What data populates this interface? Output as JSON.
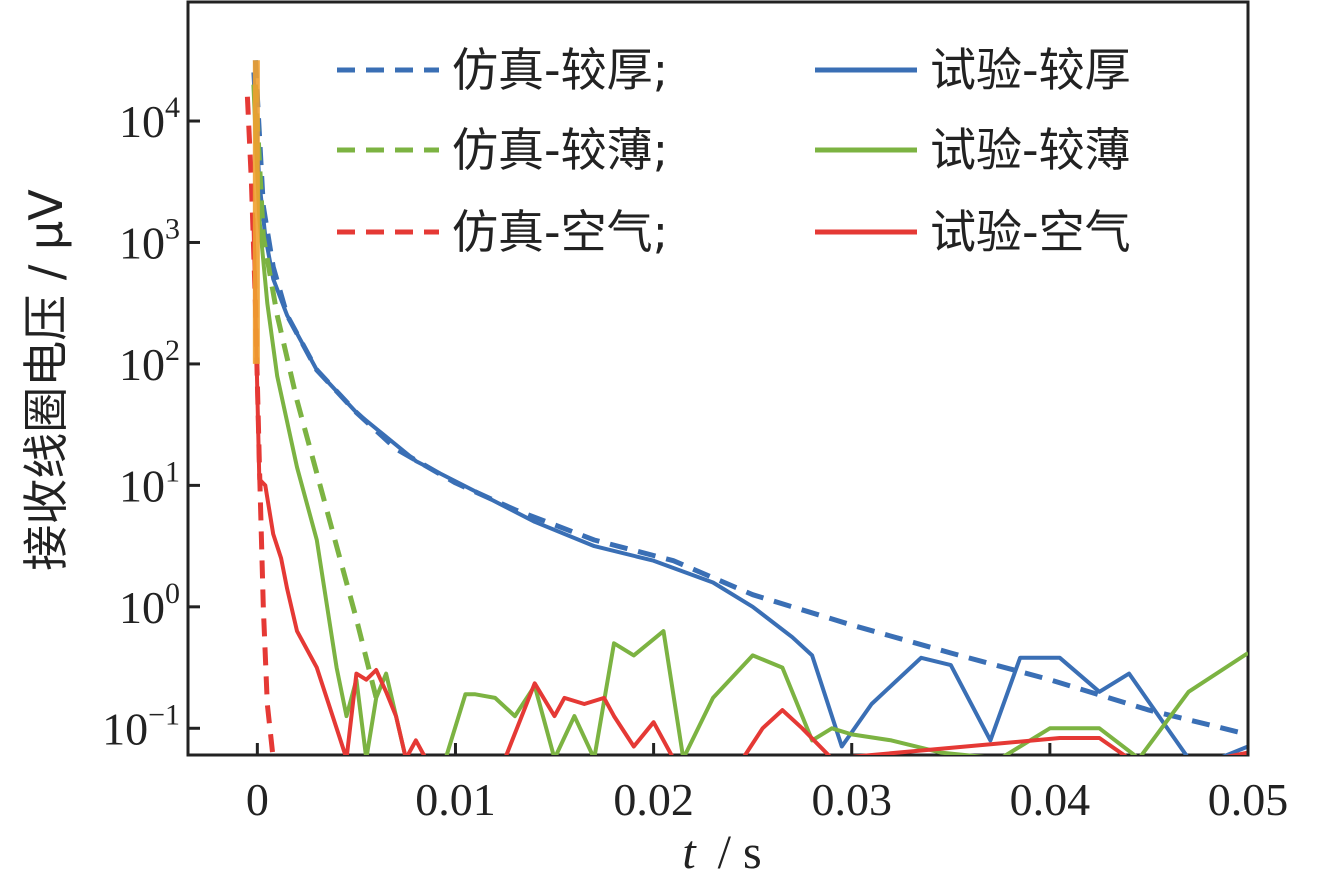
{
  "chart_data": {
    "type": "line",
    "xlabel_var": "t",
    "xlabel_unit": "/ s",
    "ylabel": "接收线圈电压 / μV",
    "x_ticks": [
      {
        "value": 0,
        "label": "0"
      },
      {
        "value": 0.01,
        "label": "0.01"
      },
      {
        "value": 0.02,
        "label": "0.02"
      },
      {
        "value": 0.03,
        "label": "0.03"
      },
      {
        "value": 0.04,
        "label": "0.04"
      },
      {
        "value": 0.05,
        "label": "0.05"
      }
    ],
    "y_ticks": [
      {
        "exp": -1,
        "base": "10",
        "sup": "−1"
      },
      {
        "exp": 0,
        "base": "10",
        "sup": "0"
      },
      {
        "exp": 1,
        "base": "10",
        "sup": "1"
      },
      {
        "exp": 2,
        "base": "10",
        "sup": "2"
      },
      {
        "exp": 3,
        "base": "10",
        "sup": "3"
      },
      {
        "exp": 4,
        "base": "10",
        "sup": "4"
      }
    ],
    "xlim": [
      -0.0035,
      0.05
    ],
    "ylim_log10": [
      -1.22,
      4.98
    ],
    "yscale": "log",
    "grid": false,
    "legend_position": "top-right",
    "series": [
      {
        "name": "仿真-较厚;",
        "color": "#3a6fb5",
        "dash": true,
        "x": [
          -0.0001,
          0.0003,
          0.0008,
          0.0015,
          0.003,
          0.005,
          0.007,
          0.01,
          0.013,
          0.017,
          0.021,
          0.025,
          0.03,
          0.035,
          0.04,
          0.045,
          0.05
        ],
        "log10y": [
          4.5,
          3.3,
          2.8,
          2.4,
          1.95,
          1.6,
          1.3,
          1.02,
          0.8,
          0.55,
          0.38,
          0.1,
          -0.15,
          -0.38,
          -0.6,
          -0.85,
          -1.05
        ]
      },
      {
        "name": "试验-较厚",
        "color": "#3a6fb5",
        "dash": false,
        "x": [
          -0.0002,
          0.0001,
          0.0004,
          0.0008,
          0.0015,
          0.003,
          0.005,
          0.008,
          0.011,
          0.014,
          0.017,
          0.02,
          0.023,
          0.025,
          0.027,
          0.028,
          0.0295,
          0.031,
          0.0335,
          0.035,
          0.037,
          0.0385,
          0.0405,
          0.0425,
          0.044,
          0.0455,
          0.047,
          0.0485,
          0.05
        ],
        "log10y": [
          4.4,
          3.5,
          3.05,
          2.7,
          2.4,
          1.95,
          1.6,
          1.2,
          0.95,
          0.7,
          0.5,
          0.38,
          0.2,
          0.0,
          -0.25,
          -0.4,
          -1.15,
          -0.8,
          -0.42,
          -0.48,
          -1.1,
          -0.42,
          -0.42,
          -0.7,
          -0.55,
          -0.9,
          -1.25,
          -1.25,
          -1.15
        ]
      },
      {
        "name": "仿真-较薄;",
        "color": "#7cb342",
        "dash": true,
        "x": [
          -0.0001,
          0.0003,
          0.001,
          0.002,
          0.003,
          0.004,
          0.005,
          0.006
        ],
        "log10y": [
          4.3,
          3.05,
          2.4,
          1.7,
          1.1,
          0.5,
          -0.1,
          -0.75
        ]
      },
      {
        "name": "试验-较薄",
        "color": "#7cb342",
        "dash": false,
        "x": [
          -0.0002,
          0.0001,
          0.0005,
          0.001,
          0.002,
          0.003,
          0.004,
          0.0045,
          0.005,
          0.0055,
          0.006,
          0.0065,
          0.007,
          0.0075,
          0.008,
          0.0085,
          0.0095,
          0.0105,
          0.011,
          0.012,
          0.013,
          0.014,
          0.015,
          0.016,
          0.017,
          0.018,
          0.019,
          0.0205,
          0.0215,
          0.023,
          0.025,
          0.0265,
          0.028,
          0.029,
          0.03,
          0.032,
          0.0345,
          0.0375,
          0.04,
          0.0425,
          0.0445,
          0.047,
          0.05
        ],
        "log10y": [
          4.3,
          3.2,
          2.5,
          1.9,
          1.15,
          0.55,
          -0.5,
          -0.9,
          -0.6,
          -1.25,
          -0.75,
          -0.55,
          -0.9,
          -1.25,
          -1.25,
          -1.25,
          -1.25,
          -0.72,
          -0.72,
          -0.75,
          -0.9,
          -0.65,
          -1.25,
          -0.9,
          -1.25,
          -0.3,
          -0.4,
          -0.2,
          -1.25,
          -0.75,
          -0.4,
          -0.5,
          -1.1,
          -1.0,
          -1.05,
          -1.1,
          -1.2,
          -1.25,
          -1.0,
          -1.0,
          -1.25,
          -0.7,
          -0.38
        ]
      },
      {
        "name": "仿真-空气;",
        "color": "#e53935",
        "dash": true,
        "x": [
          -0.0005,
          -0.0003,
          -0.0001,
          0.0001,
          0.0003,
          0.0005,
          0.0008
        ],
        "log10y": [
          4.2,
          3.5,
          2.5,
          1.2,
          0.0,
          -0.8,
          -1.25
        ]
      },
      {
        "name": "试验-空气",
        "color": "#e53935",
        "dash": false,
        "x": [
          -0.0002,
          0.0001,
          0.0004,
          0.0008,
          0.0012,
          0.0015,
          0.002,
          0.003,
          0.004,
          0.0045,
          0.005,
          0.0055,
          0.006,
          0.0065,
          0.007,
          0.0075,
          0.008,
          0.0085,
          0.009,
          0.0095,
          0.0125,
          0.014,
          0.015,
          0.0155,
          0.0165,
          0.0175,
          0.018,
          0.019,
          0.02,
          0.021,
          0.022,
          0.023,
          0.0245,
          0.0255,
          0.0265,
          0.0275,
          0.029,
          0.0405,
          0.0425,
          0.044,
          0.0485,
          0.05
        ],
        "log10y": [
          3.2,
          1.05,
          1.0,
          0.6,
          0.4,
          0.15,
          -0.2,
          -0.5,
          -1.0,
          -1.25,
          -0.55,
          -0.6,
          -0.52,
          -0.7,
          -0.9,
          -1.25,
          -1.1,
          -1.25,
          -1.25,
          -1.25,
          -1.25,
          -0.63,
          -0.9,
          -0.75,
          -0.8,
          -0.75,
          -0.9,
          -1.15,
          -0.95,
          -1.25,
          -1.25,
          -1.25,
          -1.25,
          -1.0,
          -0.85,
          -1.0,
          -1.25,
          -1.08,
          -1.08,
          -1.25,
          -1.25,
          -1.2
        ]
      }
    ],
    "spike_color": "#f0a030",
    "legend_layout": [
      0,
      2,
      4,
      1,
      3,
      5
    ]
  }
}
